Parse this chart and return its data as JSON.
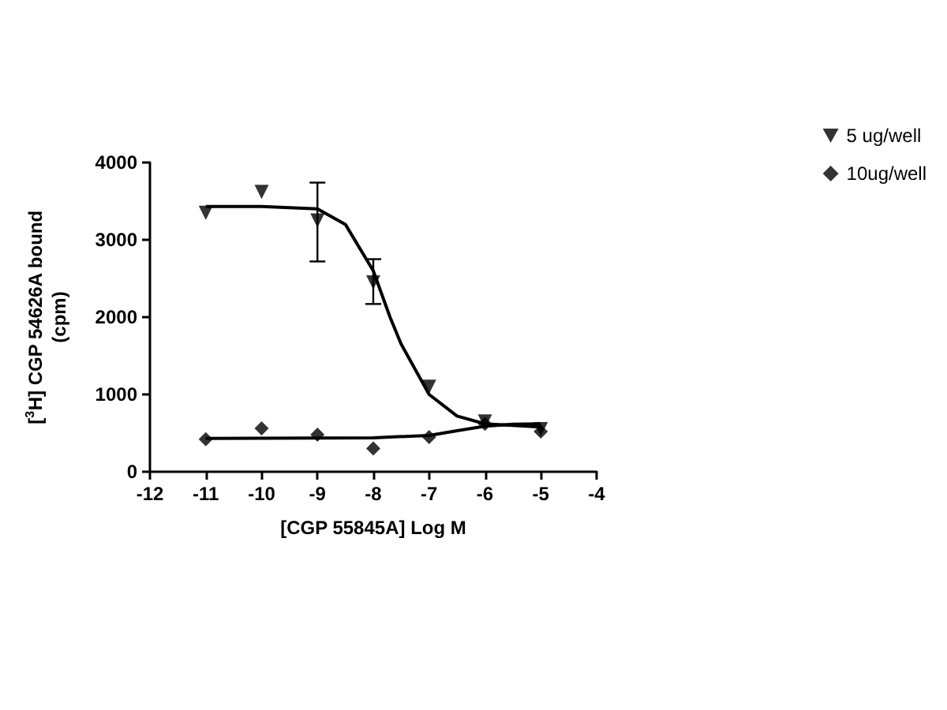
{
  "chart_data": {
    "type": "scatter",
    "xlabel": "[CGP 55845A] Log M",
    "ylabel": "[$^{3}$H] CGP 54626A bound\n(cpm)",
    "xlim": [
      -12,
      -4
    ],
    "xticks": [
      -12,
      -11,
      -10,
      -9,
      -8,
      -7,
      -6,
      -5,
      -4
    ],
    "ylim": [
      0,
      4000
    ],
    "yticks": [
      0,
      1000,
      2000,
      3000,
      4000
    ],
    "grid": false,
    "legend": "right",
    "series": [
      {
        "name": "5 ug/well",
        "color": "#000000",
        "marker": "triangle",
        "x": [
          -11,
          -10,
          -9,
          -8,
          -7,
          -6,
          -5
        ],
        "values": [
          3350,
          3620,
          3250,
          2450,
          1100,
          650,
          550
        ],
        "errors": [
          null,
          null,
          [
            2720,
            3740
          ],
          [
            2170,
            2750
          ],
          null,
          null,
          null
        ]
      },
      {
        "name": "10ug/well",
        "color": "#000000",
        "marker": "diamond",
        "x": [
          -11,
          -10,
          -9,
          -8,
          -7,
          -6,
          -5
        ],
        "values": [
          420,
          560,
          480,
          300,
          450,
          620,
          520
        ]
      },
      {
        "type": "line",
        "color": "#000000",
        "marker": "none",
        "x": [
          -11,
          -10,
          -9,
          -8.5,
          -8,
          -7.7,
          -7.5,
          -7,
          -6.5,
          -6,
          -5
        ],
        "values": [
          3430,
          3430,
          3400,
          3200,
          2600,
          2000,
          1650,
          1000,
          720,
          620,
          580
        ]
      },
      {
        "type": "line",
        "color": "#000000",
        "marker": "none",
        "x": [
          -11,
          -9,
          -8,
          -7,
          -6.5,
          -6,
          -5.5,
          -5
        ],
        "values": [
          430,
          435,
          440,
          470,
          530,
          590,
          615,
          620
        ]
      }
    ]
  }
}
